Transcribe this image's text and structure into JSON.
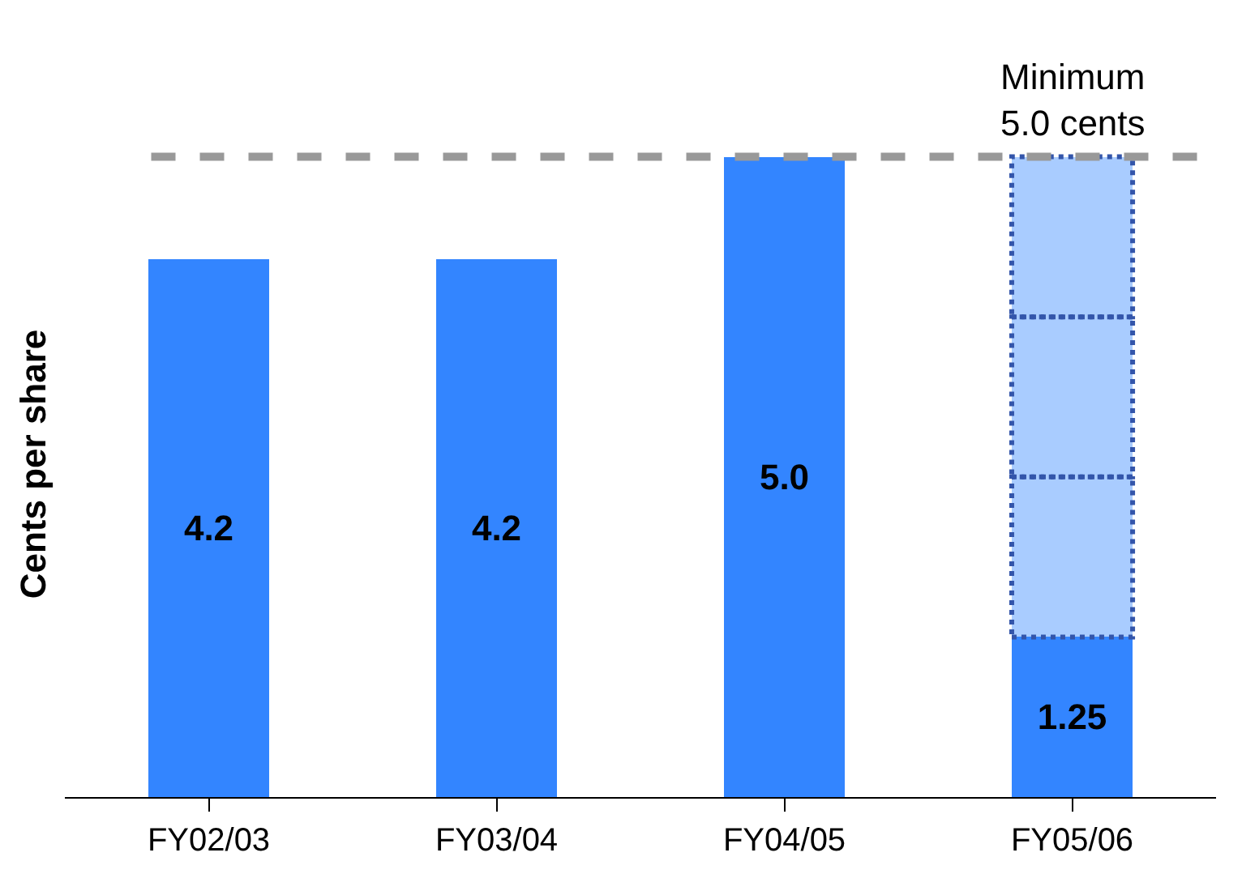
{
  "chart_data": {
    "type": "bar",
    "stacked": true,
    "ylabel": "Cents per share",
    "categories": [
      "FY02/03",
      "FY03/04",
      "FY04/05",
      "FY05/06"
    ],
    "series": [
      {
        "color": "#3385ff",
        "values": [
          4.2,
          4.2,
          5.0,
          1.25
        ],
        "value_labels": [
          "4.2",
          "4.2",
          "5.0",
          "1.25"
        ]
      },
      {
        "color": "#a9ccff",
        "values": [
          null,
          null,
          null,
          1.25
        ],
        "line_style": "dotted"
      },
      {
        "color": "#a9ccff",
        "values": [
          null,
          null,
          null,
          1.25
        ],
        "line_style": "dotted"
      },
      {
        "color": "#a9ccff",
        "values": [
          null,
          null,
          null,
          1.25
        ],
        "line_style": "dotted"
      }
    ],
    "tick_labels": "x",
    "legend": false,
    "ref_lines": [
      {
        "axis": "y",
        "value": 5.0,
        "label": "Minimum\n5.0 cents",
        "color": "#999999",
        "line_style": "dashed"
      }
    ]
  }
}
